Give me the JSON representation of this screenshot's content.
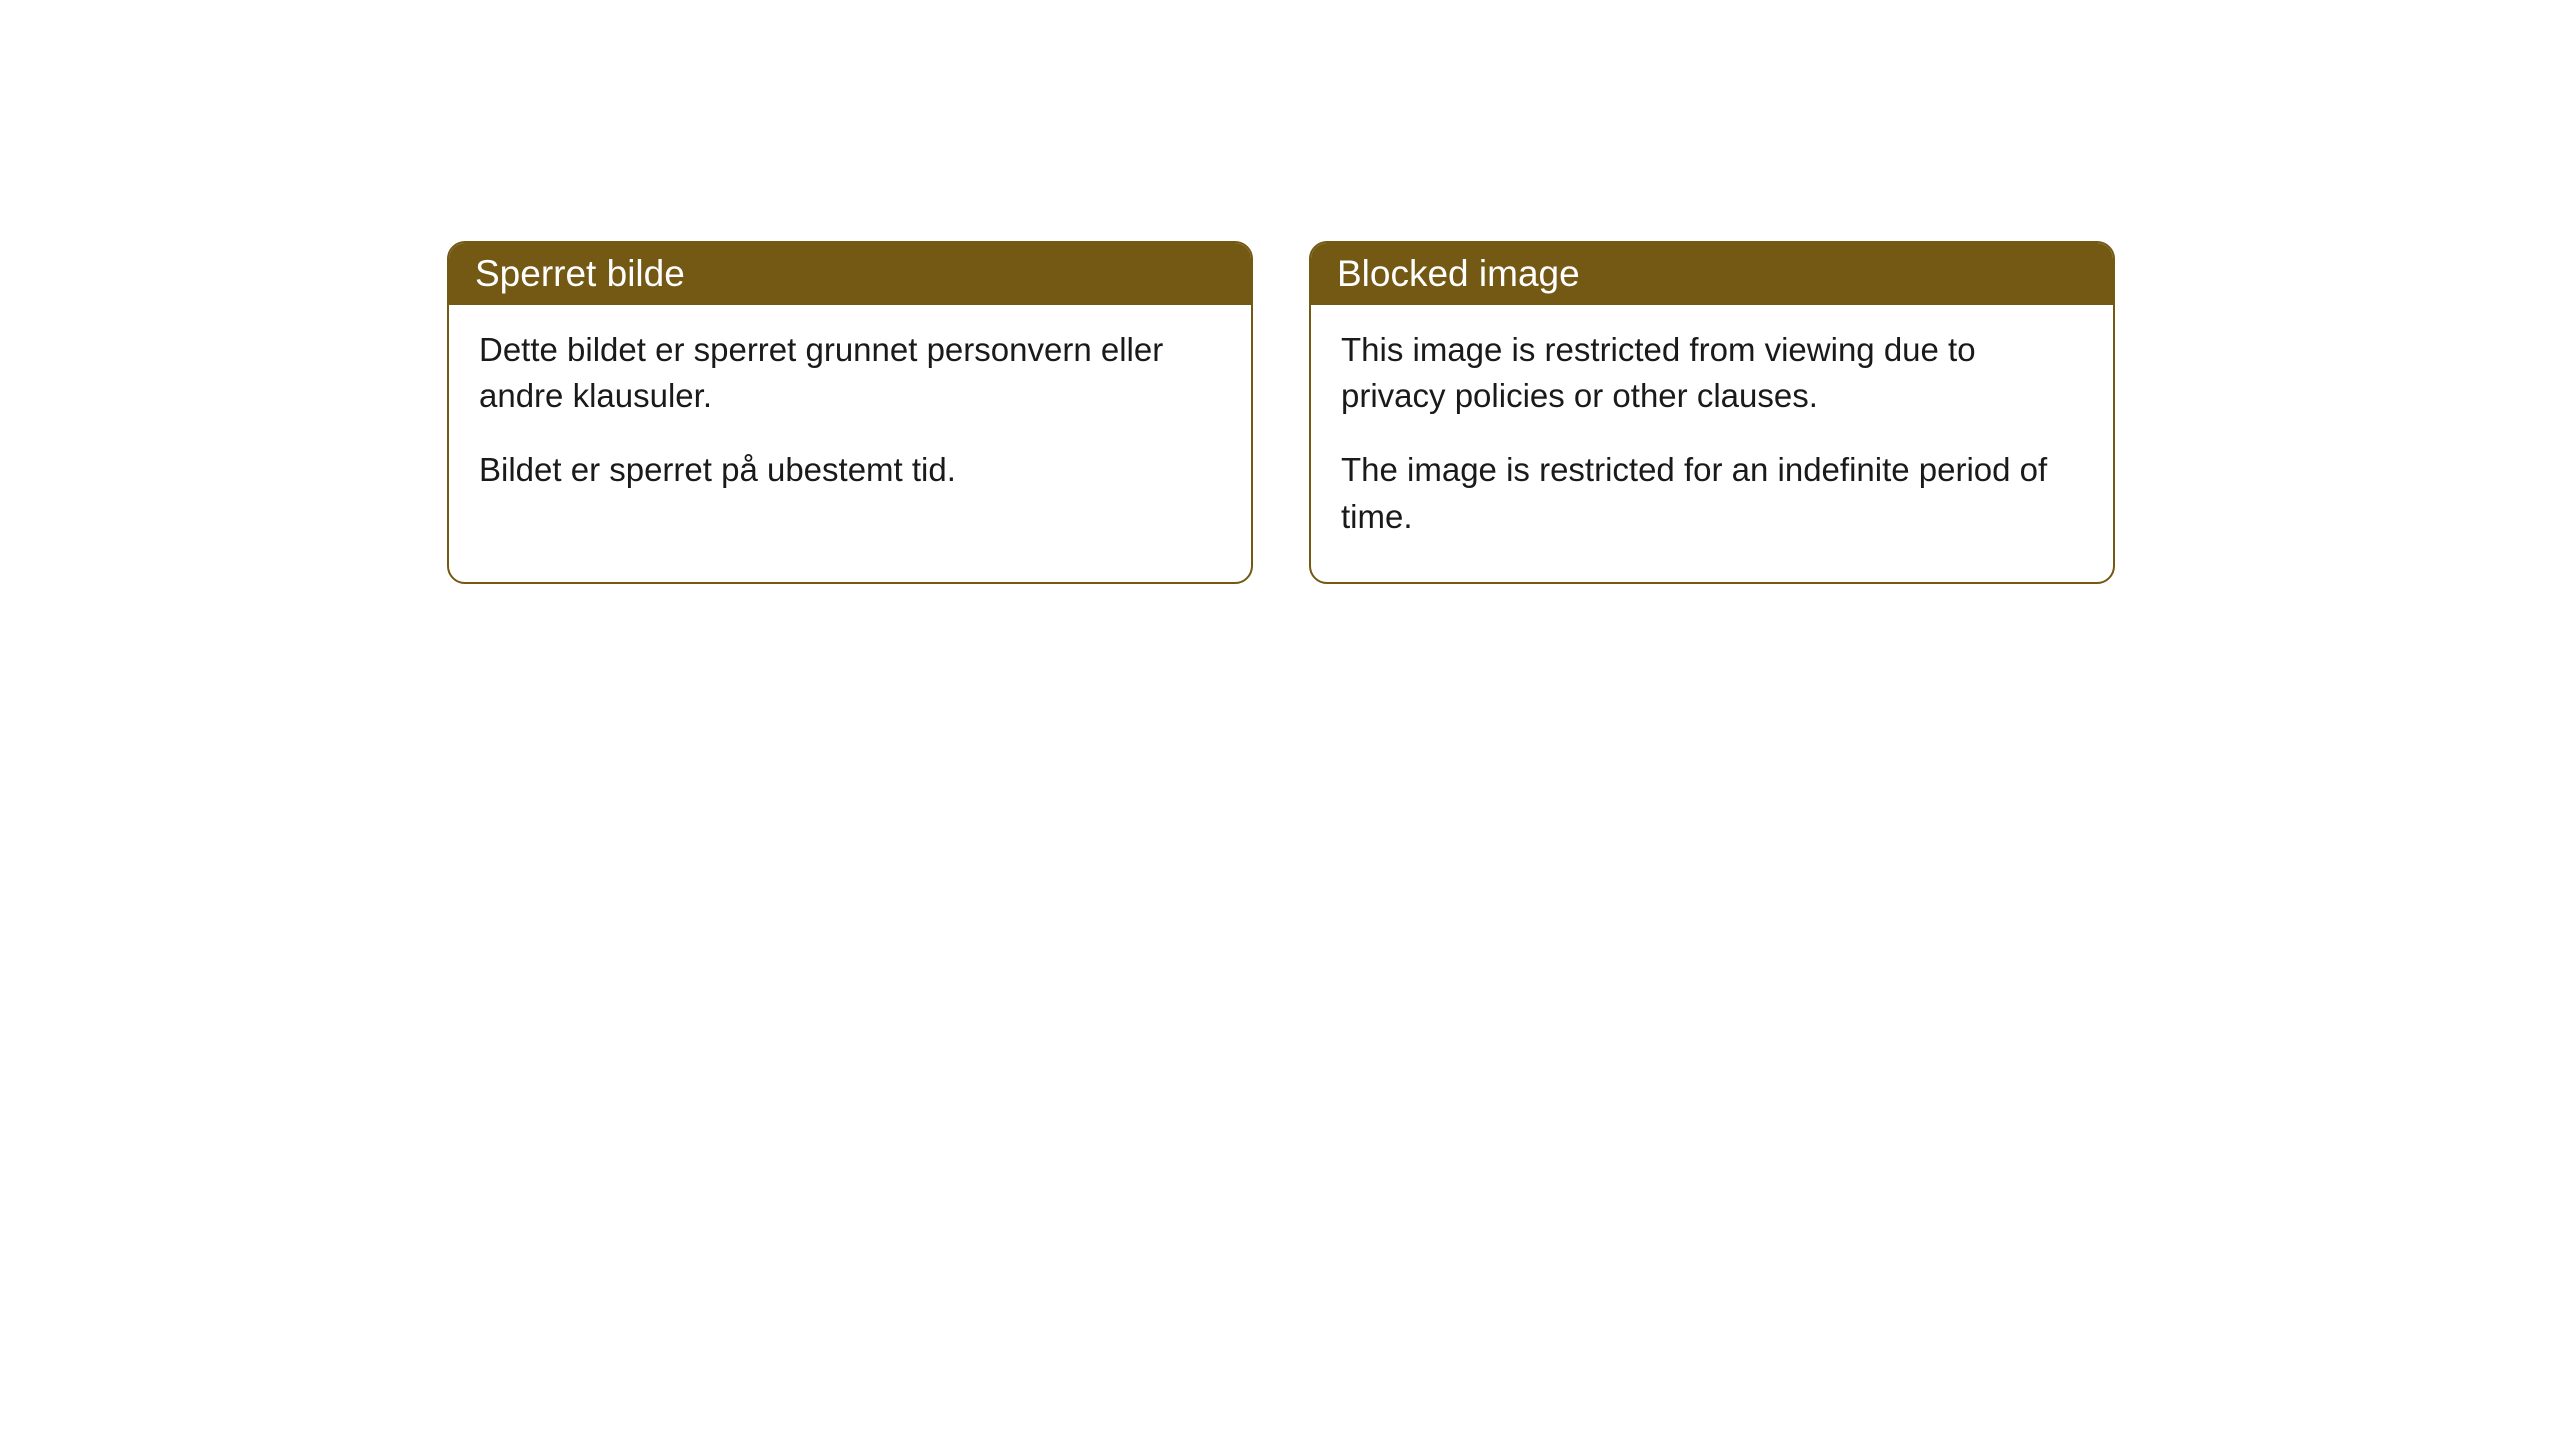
{
  "cards": [
    {
      "title": "Sperret bilde",
      "paragraph1": "Dette bildet er sperret grunnet personvern eller andre klausuler.",
      "paragraph2": "Bildet er sperret på ubestemt tid."
    },
    {
      "title": "Blocked image",
      "paragraph1": "This image is restricted from viewing due to privacy policies or other clauses.",
      "paragraph2": "The image is restricted for an indefinite period of time."
    }
  ],
  "styling": {
    "header_background": "#735913",
    "header_text_color": "#ffffff",
    "border_color": "#735913",
    "body_background": "#ffffff",
    "body_text_color": "#1a1a1a",
    "border_radius": 18,
    "header_fontsize": 37,
    "body_fontsize": 33
  }
}
